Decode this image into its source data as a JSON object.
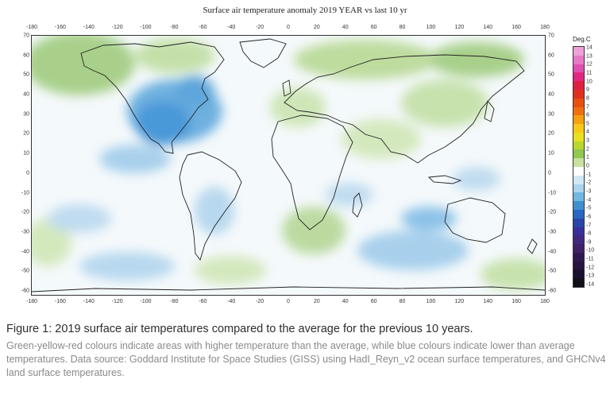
{
  "title": "Surface air temperature anomaly 2019 YEAR vs last 10 yr",
  "x_ticks": [
    "-180",
    "-160",
    "-140",
    "-120",
    "-100",
    "-80",
    "-60",
    "-40",
    "-20",
    "0",
    "20",
    "40",
    "60",
    "80",
    "100",
    "120",
    "140",
    "160",
    "180"
  ],
  "y_ticks": [
    "70",
    "60",
    "50",
    "40",
    "30",
    "20",
    "10",
    "0",
    "-10",
    "-20",
    "-30",
    "-40",
    "-50",
    "-60"
  ],
  "y_ticks_right": [
    "70",
    "60",
    "50",
    "40",
    "30",
    "20",
    "10",
    "0",
    "-10",
    "-20",
    "-30",
    "-40",
    "-50",
    "-60"
  ],
  "legend": {
    "title": "Deg.C",
    "labels": [
      "14",
      "13",
      "12",
      "11",
      "10",
      "9",
      "8",
      "7",
      "6",
      "5",
      "4",
      "3",
      "2",
      "1",
      "0",
      "-1",
      "-2",
      "-3",
      "-4",
      "-5",
      "-6",
      "-7",
      "-8",
      "-9",
      "-10",
      "-11",
      "-12",
      "-13",
      "-14"
    ],
    "colors": [
      "#f0a0d8",
      "#e878c8",
      "#e050b0",
      "#e02880",
      "#e02040",
      "#e03020",
      "#e85010",
      "#f07010",
      "#f4a010",
      "#f8c818",
      "#e8e020",
      "#b8d830",
      "#90c850",
      "#c8e0a0",
      "#ffffff",
      "#d0e8f4",
      "#a8d4ec",
      "#70b8e0",
      "#4090d0",
      "#2868c0",
      "#2848a8",
      "#383098",
      "#402880",
      "#402068",
      "#301850",
      "#281440",
      "#1c1030",
      "#101018"
    ]
  },
  "caption": {
    "title": "Figure 1: 2019 surface air temperatures compared to the average for the previous 10 years.",
    "body": "Green-yellow-red colours indicate areas with higher temperature than the average, while blue colours indicate lower than average temperatures. Data source: Goddard Institute for Space Studies (GISS) using HadI_Reyn_v2 ocean surface temperatures, and GHCNv4 land surface temperatures."
  }
}
